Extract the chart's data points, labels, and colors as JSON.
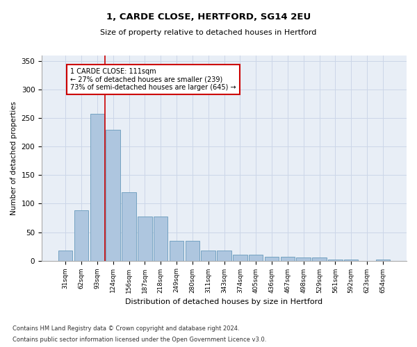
{
  "title": "1, CARDE CLOSE, HERTFORD, SG14 2EU",
  "subtitle": "Size of property relative to detached houses in Hertford",
  "xlabel": "Distribution of detached houses by size in Hertford",
  "ylabel": "Number of detached properties",
  "footnote1": "Contains HM Land Registry data © Crown copyright and database right 2024.",
  "footnote2": "Contains public sector information licensed under the Open Government Licence v3.0.",
  "categories": [
    "31sqm",
    "62sqm",
    "93sqm",
    "124sqm",
    "156sqm",
    "187sqm",
    "218sqm",
    "249sqm",
    "280sqm",
    "311sqm",
    "343sqm",
    "374sqm",
    "405sqm",
    "436sqm",
    "467sqm",
    "498sqm",
    "529sqm",
    "561sqm",
    "592sqm",
    "623sqm",
    "654sqm"
  ],
  "values": [
    18,
    88,
    258,
    230,
    120,
    78,
    78,
    35,
    35,
    18,
    18,
    10,
    10,
    7,
    7,
    5,
    5,
    2,
    2,
    0,
    2
  ],
  "bar_color": "#aec6df",
  "bar_edge_color": "#6699bb",
  "grid_color": "#ccd6e8",
  "background_color": "#e8eef6",
  "property_line_color": "#cc0000",
  "annotation_text": "1 CARDE CLOSE: 111sqm\n← 27% of detached houses are smaller (239)\n73% of semi-detached houses are larger (645) →",
  "annotation_box_color": "#ffffff",
  "annotation_box_edge": "#cc0000",
  "ylim": [
    0,
    360
  ],
  "yticks": [
    0,
    50,
    100,
    150,
    200,
    250,
    300,
    350
  ]
}
